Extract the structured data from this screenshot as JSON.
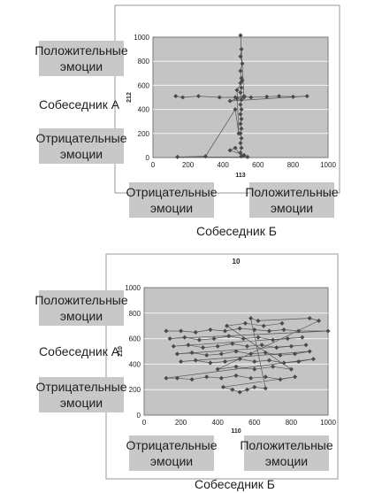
{
  "colors": {
    "plot_bg": "#c4c4c4",
    "frame": "#999999",
    "marker": "#4a4a4a",
    "line": "#555555",
    "grid": "#f4f4f4",
    "label_box": "#c8c8c8"
  },
  "labels": {
    "positive": "Положительные\nэмоции",
    "negative": "Отрицательные\nэмоции",
    "speaker_a": "Собеседник А",
    "speaker_b": "Собеседник Б"
  },
  "chart_data": [
    {
      "type": "scatter",
      "title": "",
      "xlabel": "113",
      "ylabel": "212",
      "xlim": [
        0,
        1000
      ],
      "ylim": [
        0,
        1000
      ],
      "xticks": [
        "0",
        "200",
        "400",
        "600",
        "800",
        "1000"
      ],
      "yticks": [
        "0",
        "200",
        "400",
        "600",
        "800",
        "1000"
      ],
      "grid": true,
      "lines": true,
      "points": [
        [
          130,
          510
        ],
        [
          170,
          500
        ],
        [
          260,
          510
        ],
        [
          380,
          500
        ],
        [
          470,
          500
        ],
        [
          520,
          510
        ],
        [
          560,
          500
        ],
        [
          650,
          505
        ],
        [
          720,
          510
        ],
        [
          800,
          505
        ],
        [
          880,
          510
        ],
        [
          440,
          470
        ],
        [
          480,
          490
        ],
        [
          520,
          500
        ],
        [
          500,
          1015
        ],
        [
          505,
          900
        ],
        [
          500,
          840
        ],
        [
          510,
          780
        ],
        [
          500,
          720
        ],
        [
          505,
          660
        ],
        [
          500,
          620
        ],
        [
          505,
          580
        ],
        [
          500,
          540
        ],
        [
          505,
          480
        ],
        [
          500,
          440
        ],
        [
          505,
          400
        ],
        [
          500,
          360
        ],
        [
          505,
          320
        ],
        [
          500,
          280
        ],
        [
          505,
          240
        ],
        [
          500,
          200
        ],
        [
          505,
          160
        ],
        [
          500,
          120
        ],
        [
          505,
          80
        ],
        [
          500,
          40
        ],
        [
          505,
          10
        ],
        [
          470,
          80
        ],
        [
          440,
          60
        ],
        [
          520,
          20
        ],
        [
          540,
          5
        ],
        [
          140,
          5
        ],
        [
          300,
          10
        ],
        [
          470,
          400
        ],
        [
          490,
          200
        ],
        [
          480,
          560
        ],
        [
          510,
          640
        ]
      ]
    },
    {
      "type": "scatter",
      "title": "10",
      "xlabel": "110",
      "ylabel": "210",
      "xlim": [
        0,
        1000
      ],
      "ylim": [
        0,
        1000
      ],
      "xticks": [
        "0",
        "200",
        "400",
        "600",
        "800",
        "1000"
      ],
      "yticks": [
        "0",
        "200",
        "400",
        "600",
        "800",
        "1000"
      ],
      "grid": true,
      "lines": true,
      "points": [
        [
          120,
          660
        ],
        [
          200,
          660
        ],
        [
          280,
          650
        ],
        [
          360,
          670
        ],
        [
          440,
          660
        ],
        [
          520,
          680
        ],
        [
          600,
          670
        ],
        [
          680,
          660
        ],
        [
          760,
          670
        ],
        [
          840,
          660
        ],
        [
          1000,
          660
        ],
        [
          140,
          600
        ],
        [
          220,
          610
        ],
        [
          300,
          590
        ],
        [
          380,
          600
        ],
        [
          460,
          620
        ],
        [
          540,
          600
        ],
        [
          620,
          610
        ],
        [
          700,
          590
        ],
        [
          780,
          600
        ],
        [
          860,
          610
        ],
        [
          160,
          540
        ],
        [
          240,
          550
        ],
        [
          320,
          530
        ],
        [
          400,
          540
        ],
        [
          480,
          560
        ],
        [
          560,
          540
        ],
        [
          640,
          550
        ],
        [
          720,
          530
        ],
        [
          800,
          540
        ],
        [
          880,
          550
        ],
        [
          180,
          480
        ],
        [
          260,
          490
        ],
        [
          340,
          470
        ],
        [
          420,
          480
        ],
        [
          500,
          500
        ],
        [
          580,
          480
        ],
        [
          660,
          490
        ],
        [
          740,
          470
        ],
        [
          820,
          480
        ],
        [
          900,
          500
        ],
        [
          200,
          420
        ],
        [
          280,
          430
        ],
        [
          360,
          410
        ],
        [
          440,
          420
        ],
        [
          520,
          440
        ],
        [
          600,
          420
        ],
        [
          680,
          430
        ],
        [
          760,
          410
        ],
        [
          840,
          420
        ],
        [
          920,
          440
        ],
        [
          120,
          290
        ],
        [
          180,
          290
        ],
        [
          260,
          280
        ],
        [
          340,
          300
        ],
        [
          420,
          290
        ],
        [
          500,
          310
        ],
        [
          580,
          290
        ],
        [
          660,
          300
        ],
        [
          740,
          280
        ],
        [
          820,
          300
        ],
        [
          430,
          220
        ],
        [
          480,
          200
        ],
        [
          520,
          180
        ],
        [
          560,
          200
        ],
        [
          600,
          220
        ],
        [
          660,
          210
        ],
        [
          580,
          760
        ],
        [
          620,
          740
        ],
        [
          900,
          760
        ],
        [
          950,
          740
        ],
        [
          400,
          360
        ],
        [
          500,
          380
        ],
        [
          600,
          360
        ],
        [
          700,
          380
        ],
        [
          800,
          360
        ],
        [
          450,
          700
        ],
        [
          550,
          720
        ],
        [
          650,
          700
        ],
        [
          750,
          720
        ]
      ]
    }
  ]
}
